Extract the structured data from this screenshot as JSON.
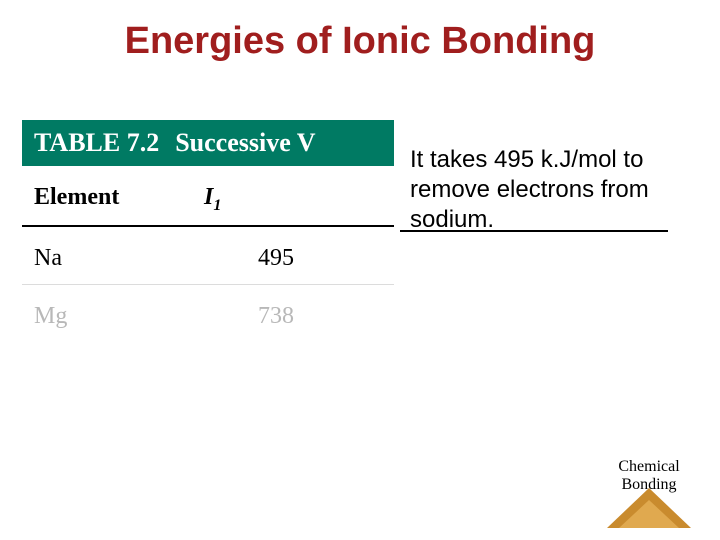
{
  "title": "Energies of Ionic Bonding",
  "table": {
    "label": "TABLE 7.2",
    "title": "Successive V",
    "col_element": "Element",
    "col_i_letter": "I",
    "col_i_sub": "1",
    "rows": [
      {
        "element": "Na",
        "value": "495",
        "faded": false
      },
      {
        "element": "Mg",
        "value": "738",
        "faded": true
      }
    ]
  },
  "note": "It takes 495 k.J/mol to remove electrons from sodium.",
  "footer": {
    "line1": "Chemical",
    "line2": "Bonding"
  },
  "colors": {
    "title_color": "#a01e1e",
    "table_header_bg": "#007a63",
    "table_header_fg": "#ffffff",
    "triangle_outer": "#c98b2e",
    "triangle_inner": "#e0a94f",
    "faded_text": "#b8b8b8"
  }
}
